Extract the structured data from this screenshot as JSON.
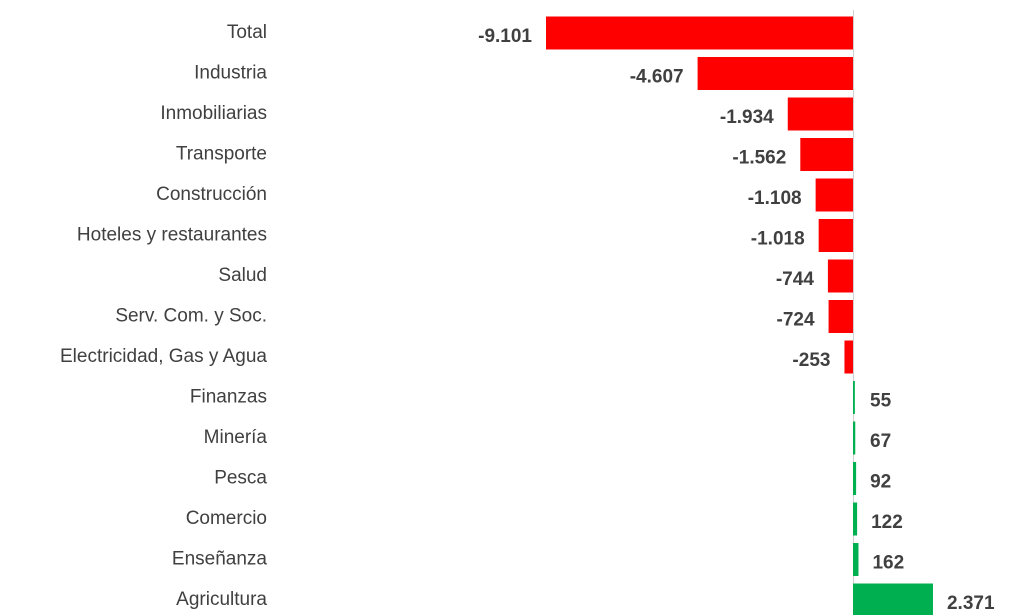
{
  "chart_data": {
    "type": "bar",
    "orientation": "horizontal",
    "categories": [
      "Total",
      "Industria",
      "Inmobiliarias",
      "Transporte",
      "Construcción",
      "Hoteles y restaurantes",
      "Salud",
      "Serv. Com. y Soc.",
      "Electricidad, Gas y Agua",
      "Finanzas",
      "Minería",
      "Pesca",
      "Comercio",
      "Enseñanza",
      "Agricultura"
    ],
    "values": [
      -9101,
      -4607,
      -1934,
      -1562,
      -1108,
      -1018,
      -744,
      -724,
      -253,
      55,
      67,
      92,
      122,
      162,
      2371
    ],
    "value_labels": [
      "-9.101",
      "-4.607",
      "-1.934",
      "-1.562",
      "-1.108",
      "-1.018",
      "-744",
      "-724",
      "-253",
      "55",
      "67",
      "92",
      "122",
      "162",
      "2.371"
    ],
    "color_negative": "#ff0000",
    "color_positive": "#00b050"
  }
}
